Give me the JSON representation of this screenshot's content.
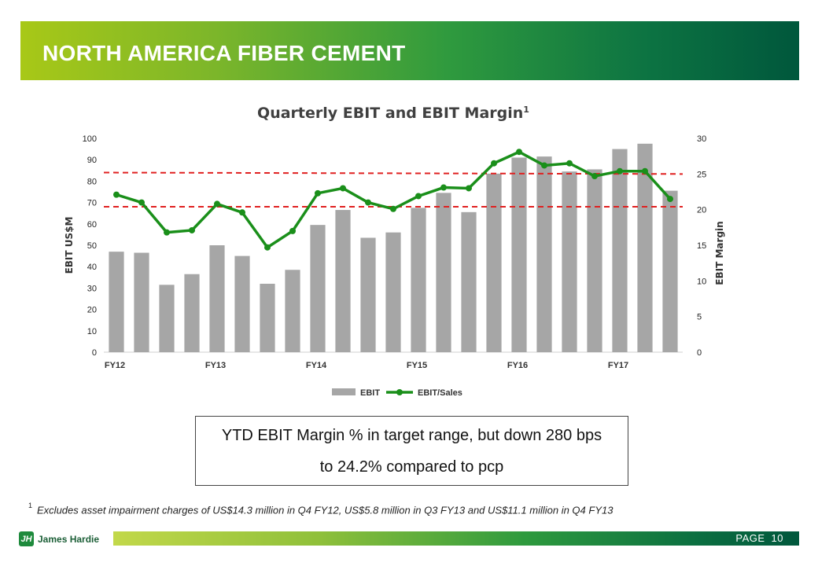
{
  "header": {
    "title": "NORTH AMERICA FIBER CEMENT"
  },
  "chart_data": {
    "type": "bar",
    "title": "Quarterly  EBIT and  EBIT Margin",
    "title_superscript": "1",
    "ylabel": "EBIT US$M",
    "y2label": "EBIT Margin",
    "ylim": [
      0,
      100
    ],
    "y_ticks": [
      0,
      10,
      20,
      30,
      40,
      50,
      60,
      70,
      80,
      90,
      100
    ],
    "y2lim": [
      0,
      30
    ],
    "y2_ticks": [
      0,
      5,
      10,
      15,
      20,
      25,
      30
    ],
    "x_tick_labels": [
      {
        "label": "FY12",
        "index": 0
      },
      {
        "label": "FY13",
        "index": 4
      },
      {
        "label": "FY14",
        "index": 8
      },
      {
        "label": "FY15",
        "index": 12
      },
      {
        "label": "FY16",
        "index": 16
      },
      {
        "label": "FY17",
        "index": 20
      }
    ],
    "series": [
      {
        "name": "EBIT",
        "kind": "bar",
        "axis": "left",
        "color": "#a6a6a6",
        "values": [
          47,
          46.5,
          31.5,
          36.5,
          50,
          45,
          32,
          38.5,
          59.5,
          66.5,
          53.5,
          56,
          67.5,
          74.5,
          65.5,
          83.5,
          91,
          91.5,
          84.5,
          85.5,
          95,
          97.5,
          75.5
        ]
      },
      {
        "name": "EBIT/Sales",
        "kind": "line",
        "axis": "right",
        "color": "#1a8f1a",
        "values": [
          22.1,
          21.0,
          16.8,
          17.1,
          20.8,
          19.6,
          14.7,
          17.0,
          22.3,
          23.0,
          21.0,
          20.1,
          21.9,
          23.1,
          23.0,
          26.5,
          28.1,
          26.2,
          26.5,
          24.7,
          25.4,
          25.4,
          21.5
        ]
      }
    ],
    "reference_lines": [
      {
        "axis": "right",
        "from": 25.2,
        "to": 25.0,
        "color": "#e02020",
        "style": "dashed"
      },
      {
        "axis": "right",
        "from": 20.4,
        "to": 20.4,
        "color": "#e02020",
        "style": "dashed"
      }
    ],
    "legend": {
      "position": "bottom",
      "entries": [
        "EBIT",
        "EBIT/Sales"
      ]
    }
  },
  "callout": {
    "line1": "YTD EBIT Margin % in target range, but down 280 bps",
    "line2": "to 24.2% compared to pcp"
  },
  "footnote": {
    "marker": "1",
    "text": "Excludes asset impairment charges of US$14.3 million in Q4 FY12, US$5.8 million in Q3 FY13 and US$11.1 million in Q4 FY13"
  },
  "footer": {
    "logo_text": "James Hardie",
    "page_label": "PAGE",
    "page_number": "10"
  }
}
